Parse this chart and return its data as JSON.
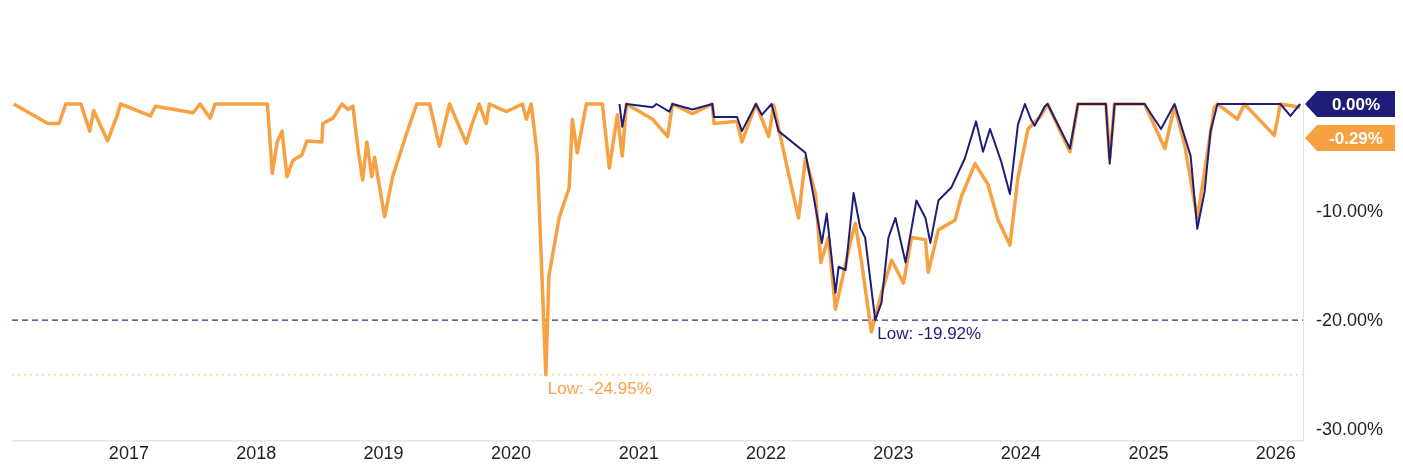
{
  "chart_data": {
    "type": "line",
    "marker": "none",
    "xlim": [
      "2016-02-01",
      "2026-03-20"
    ],
    "ylim": [
      -31,
      0
    ],
    "xticks": [
      "2017",
      "2018",
      "2019",
      "2020",
      "2021",
      "2022",
      "2023",
      "2024",
      "2025",
      "2026"
    ],
    "yticks": [
      {
        "value": -10,
        "label": "-10.00%"
      },
      {
        "value": -20,
        "label": "-20.00%"
      },
      {
        "value": -30,
        "label": "-30.00%"
      }
    ],
    "ref_lines": [
      {
        "axis": "y",
        "value": -19.92,
        "color": "#2e2e8c",
        "line_style": "dashed"
      },
      {
        "axis": "y",
        "value": -24.95,
        "color": "#f3d48e",
        "line_style": "dotted"
      }
    ],
    "annotations": [
      {
        "text": "Low: -19.92%",
        "x": "2022-11-10",
        "y": -19.92
      },
      {
        "text": "Low: -24.95%",
        "x": "2020-04-10",
        "y": -24.95
      },
      {
        "text": "0.00%",
        "x": "2026-03-12",
        "y": 0
      },
      {
        "text": "-0.29%",
        "x": "2026-03-12",
        "y": -0.29
      }
    ],
    "series": [
      {
        "color": "#f7a143",
        "x": [
          "2016-02-06",
          "2016-05-14",
          "2016-06-15",
          "2016-07-04",
          "2016-08-16",
          "2016-09-11",
          "2016-09-22",
          "2016-11-01",
          "2016-11-30",
          "2016-12-08",
          "2017-03-04",
          "2017-03-18",
          "2017-07-04",
          "2017-07-24",
          "2017-08-22",
          "2017-09-05",
          "2018-02-02",
          "2018-02-16",
          "2018-03-02",
          "2018-03-16",
          "2018-03-30",
          "2018-04-16",
          "2018-05-12",
          "2018-05-26",
          "2018-07-08",
          "2018-07-11",
          "2018-08-09",
          "2018-09-04",
          "2018-09-21",
          "2018-10-05",
          "2018-10-19",
          "2018-11-02",
          "2018-11-14",
          "2018-11-28",
          "2018-12-06",
          "2019-01-04",
          "2019-01-27",
          "2019-03-08",
          "2019-04-06",
          "2019-05-13",
          "2019-06-10",
          "2019-07-09",
          "2019-08-26",
          "2019-09-12",
          "2019-10-02",
          "2019-10-22",
          "2019-10-31",
          "2019-12-19",
          "2020-02-03",
          "2020-02-14",
          "2020-02-28",
          "2020-03-16",
          "2020-04-10",
          "2020-04-19",
          "2020-05-18",
          "2020-06-16",
          "2020-06-25",
          "2020-07-09",
          "2020-08-04",
          "2020-09-19",
          "2020-10-09",
          "2020-11-01",
          "2020-11-15",
          "2020-11-27",
          "2021-02-10",
          "2021-03-25",
          "2021-04-08",
          "2021-06-04",
          "2021-07-31",
          "2021-08-05",
          "2021-10-10",
          "2021-10-24",
          "2021-12-03",
          "2022-01-09",
          "2022-01-23",
          "2022-02-27",
          "2022-04-04",
          "2022-04-24",
          "2022-05-23",
          "2022-06-07",
          "2022-06-29",
          "2022-07-19",
          "2022-08-05",
          "2022-09-03",
          "2022-09-14",
          "2022-10-01",
          "2022-10-30",
          "2022-11-28",
          "2022-12-27",
          "2023-01-30",
          "2023-02-22",
          "2023-04-03",
          "2023-04-11",
          "2023-05-10",
          "2023-06-27",
          "2023-07-14",
          "2023-08-23",
          "2023-09-29",
          "2023-10-28",
          "2023-12-01",
          "2023-12-24",
          "2024-01-22",
          "2024-02-28",
          "2024-03-18",
          "2024-05-21",
          "2024-06-13",
          "2024-09-01",
          "2024-09-12",
          "2024-09-26",
          "2024-12-21",
          "2025-02-17",
          "2025-03-17",
          "2025-04-15",
          "2025-05-21",
          "2025-06-05",
          "2025-07-09",
          "2025-07-18",
          "2025-09-13",
          "2025-10-03",
          "2025-12-28",
          "2026-01-14",
          "2026-03-12"
        ],
        "values": [
          0,
          -1.8,
          -1.8,
          0,
          0,
          -2.5,
          -0.6,
          -3.4,
          -0.9,
          0,
          -1.1,
          -0.2,
          -0.8,
          0,
          -1.3,
          0,
          0,
          -6.4,
          -3.5,
          -2.5,
          -6.7,
          -5.2,
          -4.7,
          -3.4,
          -3.5,
          -1.8,
          -1.3,
          0,
          -0.5,
          -0.2,
          -4.0,
          -7.0,
          -3.5,
          -6.7,
          -4.9,
          -10.4,
          -6.7,
          -2.7,
          0,
          0,
          -3.9,
          0,
          -3.6,
          -1.8,
          0,
          -1.8,
          0,
          -0.7,
          0,
          -1.4,
          0,
          -4.6,
          -24.95,
          -15.8,
          -10.5,
          -7.7,
          -1.4,
          -4.5,
          0,
          0,
          -5.9,
          -1.0,
          -4.8,
          0,
          -1.4,
          -3.0,
          0,
          -0.9,
          0,
          -1.8,
          -1.6,
          -3.5,
          0,
          -3.0,
          -0.1,
          -5.3,
          -10.5,
          -5.0,
          -8.3,
          -14.6,
          -12.3,
          -18.9,
          -16.5,
          -12.3,
          -11.0,
          -14.4,
          -21.0,
          -17.4,
          -14.4,
          -16.5,
          -12.3,
          -12.5,
          -15.5,
          -11.6,
          -10.7,
          -8.6,
          -5.5,
          -7.4,
          -10.7,
          -13.0,
          -6.8,
          -2.3,
          -1.1,
          0,
          -4.4,
          0,
          0,
          -5.0,
          0,
          0,
          -4.1,
          -0.2,
          -3.8,
          -10.5,
          -7.5,
          -0.3,
          0,
          -1.4,
          0,
          -2.9,
          0,
          -0.29
        ]
      },
      {
        "color": "#1e1e78",
        "x": [
          "2020-11-07",
          "2020-11-15",
          "2020-11-27",
          "2021-02-10",
          "2021-02-21",
          "2021-03-30",
          "2021-04-08",
          "2021-06-04",
          "2021-07-31",
          "2021-08-05",
          "2021-10-10",
          "2021-10-24",
          "2021-12-03",
          "2021-12-20",
          "2022-01-17",
          "2022-02-06",
          "2022-04-24",
          "2022-05-11",
          "2022-06-10",
          "2022-06-24",
          "2022-07-19",
          "2022-07-28",
          "2022-08-17",
          "2022-09-09",
          "2022-09-28",
          "2022-10-12",
          "2022-11-10",
          "2022-11-28",
          "2022-12-18",
          "2023-01-07",
          "2023-02-05",
          "2023-03-08",
          "2023-04-03",
          "2023-04-17",
          "2023-05-10",
          "2023-06-16",
          "2023-07-25",
          "2023-08-26",
          "2023-09-15",
          "2023-10-05",
          "2023-11-06",
          "2023-12-01",
          "2023-12-24",
          "2024-01-13",
          "2024-01-30",
          "2024-02-10",
          "2024-03-10",
          "2024-03-18",
          "2024-05-21",
          "2024-06-13",
          "2024-09-01",
          "2024-09-12",
          "2024-09-26",
          "2024-12-21",
          "2025-02-06",
          "2025-03-17",
          "2025-05-02",
          "2025-05-21",
          "2025-06-11",
          "2025-06-28",
          "2025-07-18",
          "2026-01-14",
          "2026-02-12",
          "2026-03-12"
        ],
        "values": [
          0,
          -2.1,
          0,
          -0.3,
          0,
          -0.7,
          0,
          -0.5,
          0,
          -1.2,
          -1.2,
          -2.5,
          0,
          -1.0,
          0,
          -2.5,
          -4.5,
          -7.4,
          -12.8,
          -10.1,
          -17.4,
          -15.0,
          -15.3,
          -8.2,
          -11.4,
          -12.3,
          -19.92,
          -18.3,
          -12.3,
          -10.5,
          -14.6,
          -8.9,
          -10.5,
          -12.8,
          -8.9,
          -7.7,
          -5.0,
          -1.6,
          -4.4,
          -2.3,
          -5.3,
          -8.3,
          -1.9,
          0,
          -1.4,
          -2.0,
          -0.2,
          0,
          -4.1,
          0,
          0,
          -5.5,
          0,
          0,
          -2.3,
          0,
          -4.8,
          -11.5,
          -8.1,
          -2.5,
          0,
          0,
          -1.1,
          0
        ]
      }
    ]
  }
}
